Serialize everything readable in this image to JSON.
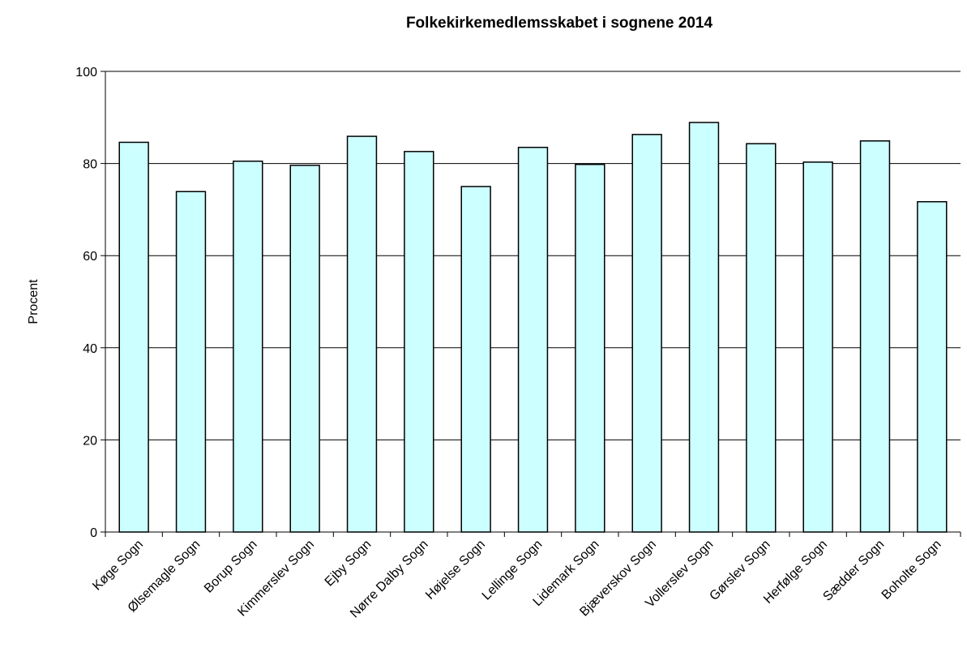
{
  "chart_data": {
    "type": "bar",
    "title": "Folkekirkemedlemsskabet i sognene 2014",
    "y_label": "Procent",
    "categories": [
      "Køge Sogn",
      "Ølsemagle Sogn",
      "Borup Sogn",
      "Kimmerslev Sogn",
      "Ejby Sogn",
      "Nørre Dalby Sogn",
      "Højelse Sogn",
      "Lellinge Sogn",
      "Lidemark Sogn",
      "Bjæverskov Sogn",
      "Vollerslev Sogn",
      "Gørslev Sogn",
      "Herfølge Sogn",
      "Sædder Sogn",
      "Boholte Sogn"
    ],
    "values": [
      84.6,
      73.9,
      80.5,
      79.6,
      85.9,
      82.6,
      75.0,
      83.5,
      79.8,
      86.3,
      88.9,
      84.3,
      80.3,
      84.9,
      71.7
    ],
    "color": "#ccffff",
    "ylim": [
      0,
      100
    ],
    "yticks": [
      0,
      20,
      40,
      60,
      80,
      100
    ],
    "grid": true
  }
}
